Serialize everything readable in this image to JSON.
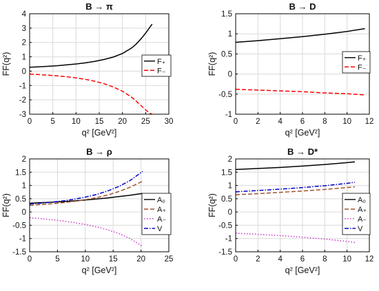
{
  "chart_data": [
    {
      "type": "line",
      "title": "B → π",
      "xlabel": "q² [GeV²]",
      "ylabel": "FF(q²)",
      "xlim": [
        0,
        30
      ],
      "ylim": [
        -3,
        4
      ],
      "xticks": [
        0,
        5,
        10,
        15,
        20,
        25,
        30
      ],
      "yticks": [
        -3,
        -2,
        -1,
        0,
        1,
        2,
        3,
        4
      ],
      "grid": true,
      "legend_position": "middle-right",
      "series": [
        {
          "name": "F₊",
          "color": "#000000",
          "dash": "solid",
          "x": [
            0,
            2,
            4,
            6,
            8,
            10,
            12,
            14,
            16,
            18,
            20,
            22,
            23,
            24,
            25,
            26,
            26.4
          ],
          "y": [
            0.27,
            0.3,
            0.34,
            0.38,
            0.44,
            0.5,
            0.58,
            0.68,
            0.81,
            0.98,
            1.23,
            1.62,
            1.9,
            2.25,
            2.65,
            3.1,
            3.28
          ]
        },
        {
          "name": "F₋",
          "color": "#ff0000",
          "dash": "dashed",
          "x": [
            0,
            2,
            4,
            6,
            8,
            10,
            12,
            14,
            16,
            18,
            20,
            22,
            23,
            24,
            25,
            26,
            26.4
          ],
          "y": [
            -0.2,
            -0.24,
            -0.28,
            -0.33,
            -0.39,
            -0.47,
            -0.57,
            -0.7,
            -0.87,
            -1.1,
            -1.4,
            -1.82,
            -2.1,
            -2.4,
            -2.7,
            -2.95,
            -3.0
          ]
        }
      ]
    },
    {
      "type": "line",
      "title": "B → D",
      "xlabel": "q² [GeV²]",
      "ylabel": "FF(q²)",
      "xlim": [
        0,
        12
      ],
      "ylim": [
        -1,
        1.5
      ],
      "xticks": [
        0,
        2,
        4,
        6,
        8,
        10,
        12
      ],
      "yticks": [
        -1,
        -0.5,
        0,
        0.5,
        1,
        1.5
      ],
      "grid": true,
      "legend_position": "middle-right",
      "series": [
        {
          "name": "F₊",
          "color": "#000000",
          "dash": "solid",
          "x": [
            0,
            2,
            4,
            6,
            8,
            10,
            11.6
          ],
          "y": [
            0.79,
            0.83,
            0.88,
            0.93,
            0.99,
            1.06,
            1.13
          ]
        },
        {
          "name": "F₋",
          "color": "#ff0000",
          "dash": "dashed",
          "x": [
            0,
            2,
            4,
            6,
            8,
            10,
            11.6
          ],
          "y": [
            -0.38,
            -0.4,
            -0.42,
            -0.44,
            -0.47,
            -0.49,
            -0.52
          ]
        }
      ]
    },
    {
      "type": "line",
      "title": "B → ρ",
      "xlabel": "q² [GeV²]",
      "ylabel": "FF(q²)",
      "xlim": [
        0,
        25
      ],
      "ylim": [
        -1.5,
        2
      ],
      "xticks": [
        0,
        5,
        10,
        15,
        20,
        25
      ],
      "yticks": [
        -1.5,
        -1,
        -0.5,
        0,
        0.5,
        1,
        1.5,
        2
      ],
      "grid": true,
      "legend_position": "right",
      "series": [
        {
          "name": "A₀",
          "color": "#000000",
          "dash": "solid",
          "x": [
            0,
            2,
            4,
            6,
            8,
            10,
            12,
            14,
            16,
            18,
            20.3
          ],
          "y": [
            0.33,
            0.35,
            0.37,
            0.39,
            0.42,
            0.45,
            0.49,
            0.53,
            0.58,
            0.63,
            0.7
          ]
        },
        {
          "name": "A₊",
          "color": "#a0522d",
          "dash": "dashed",
          "x": [
            0,
            2,
            4,
            6,
            8,
            10,
            12,
            14,
            16,
            18,
            20.3
          ],
          "y": [
            0.25,
            0.28,
            0.31,
            0.35,
            0.4,
            0.46,
            0.54,
            0.64,
            0.77,
            0.93,
            1.16
          ]
        },
        {
          "name": "A₋",
          "color": "#cc33cc",
          "dash": "dotted",
          "x": [
            0,
            2,
            4,
            6,
            8,
            10,
            12,
            14,
            16,
            18,
            20.3
          ],
          "y": [
            -0.22,
            -0.25,
            -0.29,
            -0.34,
            -0.4,
            -0.47,
            -0.56,
            -0.67,
            -0.81,
            -1.0,
            -1.3
          ]
        },
        {
          "name": "V",
          "color": "#0000cc",
          "dash": "dashdot",
          "x": [
            0,
            2,
            4,
            6,
            8,
            10,
            12,
            14,
            16,
            18,
            20.3
          ],
          "y": [
            0.3,
            0.33,
            0.37,
            0.42,
            0.48,
            0.56,
            0.66,
            0.79,
            0.96,
            1.18,
            1.53
          ]
        }
      ]
    },
    {
      "type": "line",
      "title": "B → D*",
      "xlabel": "q² [GeV²]",
      "ylabel": "FF(q²)",
      "xlim": [
        0,
        12
      ],
      "ylim": [
        -1.5,
        2
      ],
      "xticks": [
        0,
        2,
        4,
        6,
        8,
        10,
        12
      ],
      "yticks": [
        -1.5,
        -1,
        -0.5,
        0,
        0.5,
        1,
        1.5,
        2
      ],
      "grid": true,
      "legend_position": "right",
      "series": [
        {
          "name": "A₀",
          "color": "#000000",
          "dash": "solid",
          "x": [
            0,
            2,
            4,
            6,
            8,
            10,
            10.7
          ],
          "y": [
            1.6,
            1.64,
            1.68,
            1.73,
            1.79,
            1.86,
            1.89
          ]
        },
        {
          "name": "A₊",
          "color": "#a0522d",
          "dash": "dashed",
          "x": [
            0,
            2,
            4,
            6,
            8,
            10,
            10.7
          ],
          "y": [
            0.65,
            0.69,
            0.74,
            0.79,
            0.85,
            0.92,
            0.95
          ]
        },
        {
          "name": "A₋",
          "color": "#cc33cc",
          "dash": "dotted",
          "x": [
            0,
            2,
            4,
            6,
            8,
            10,
            10.7
          ],
          "y": [
            -0.8,
            -0.84,
            -0.89,
            -0.95,
            -1.02,
            -1.11,
            -1.15
          ]
        },
        {
          "name": "V",
          "color": "#0000cc",
          "dash": "dashdot",
          "x": [
            0,
            2,
            4,
            6,
            8,
            10,
            10.7
          ],
          "y": [
            0.76,
            0.81,
            0.86,
            0.92,
            0.99,
            1.08,
            1.12
          ]
        }
      ]
    }
  ]
}
